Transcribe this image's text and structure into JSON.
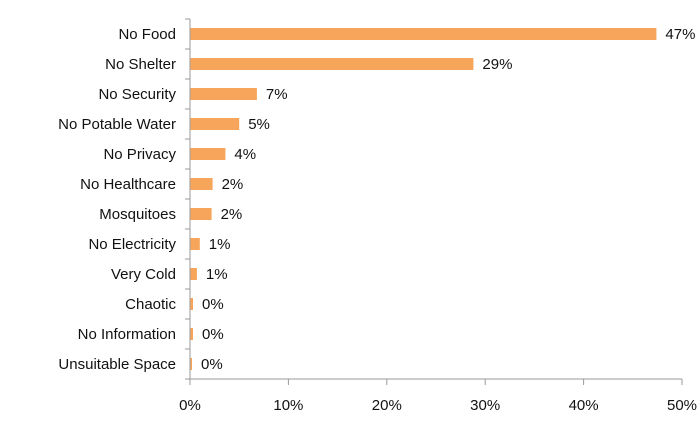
{
  "chart_data": {
    "type": "bar",
    "orientation": "horizontal",
    "title": "",
    "xlabel": "",
    "ylabel": "",
    "categories": [
      "No Food",
      "No Shelter",
      "No Security",
      "No Potable Water",
      "No Privacy",
      "No Healthcare",
      "Mosquitoes",
      "No Electricity",
      "Very Cold",
      "Chaotic",
      "No Information",
      "Unsuitable Space"
    ],
    "values": [
      47.4,
      28.8,
      6.8,
      5.0,
      3.6,
      2.3,
      2.2,
      1.0,
      0.7,
      0.3,
      0.3,
      0.2
    ],
    "value_labels": [
      "47%",
      "29%",
      "7%",
      "5%",
      "4%",
      "2%",
      "2%",
      "1%",
      "1%",
      "0%",
      "0%",
      "0%"
    ],
    "xlim": [
      0,
      50
    ],
    "xticks": [
      0,
      10,
      20,
      30,
      40,
      50
    ],
    "xtick_labels": [
      "0%",
      "10%",
      "20%",
      "30%",
      "40%",
      "50%"
    ],
    "grid": false,
    "legend": "none",
    "bar_color": "#F6A55A"
  }
}
